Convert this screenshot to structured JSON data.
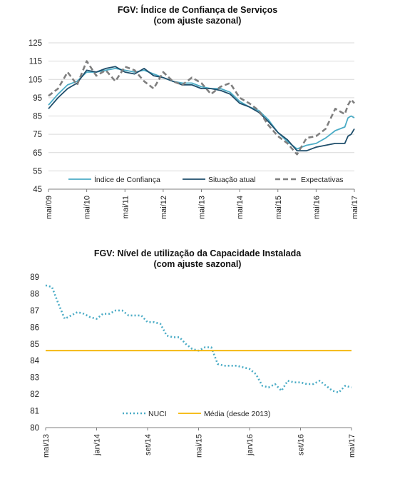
{
  "chart_data": [
    {
      "type": "line",
      "title": "FGV: Índice de Confiança de Serviços",
      "subtitle": "(com ajuste sazonal)",
      "ylim": [
        45,
        125
      ],
      "yticks": [
        45,
        55,
        65,
        75,
        85,
        95,
        105,
        115,
        125
      ],
      "x_tick_labels": [
        "mai/09",
        "mai/10",
        "mai/11",
        "mai/12",
        "mai/13",
        "mai/14",
        "mai/15",
        "mai/16",
        "mai/17"
      ],
      "x_range": [
        "2009-05",
        "2017-05"
      ],
      "grid": true,
      "legend_position": "bottom",
      "series": [
        {
          "name": "Índice de Confiança",
          "color": "#4bacc6",
          "style": "solid",
          "points": [
            [
              "2009-05",
              91
            ],
            [
              "2009-08",
              97
            ],
            [
              "2009-11",
              102
            ],
            [
              "2010-02",
              104
            ],
            [
              "2010-05",
              109
            ],
            [
              "2010-08",
              109
            ],
            [
              "2010-11",
              110
            ],
            [
              "2011-02",
              111
            ],
            [
              "2011-05",
              110
            ],
            [
              "2011-08",
              109
            ],
            [
              "2011-11",
              110
            ],
            [
              "2012-02",
              108
            ],
            [
              "2012-05",
              106
            ],
            [
              "2012-08",
              104
            ],
            [
              "2012-11",
              103
            ],
            [
              "2013-02",
              103
            ],
            [
              "2013-05",
              101
            ],
            [
              "2013-08",
              100
            ],
            [
              "2013-11",
              100
            ],
            [
              "2014-02",
              98
            ],
            [
              "2014-05",
              93
            ],
            [
              "2014-08",
              90
            ],
            [
              "2014-11",
              88
            ],
            [
              "2015-02",
              83
            ],
            [
              "2015-05",
              76
            ],
            [
              "2015-08",
              71
            ],
            [
              "2015-11",
              67
            ],
            [
              "2016-02",
              69
            ],
            [
              "2016-05",
              70
            ],
            [
              "2016-08",
              73
            ],
            [
              "2016-11",
              77
            ],
            [
              "2017-02",
              79
            ],
            [
              "2017-03",
              84
            ],
            [
              "2017-04",
              85
            ],
            [
              "2017-05",
              84
            ]
          ]
        },
        {
          "name": "Situação atual",
          "color": "#1f4e6b",
          "style": "solid",
          "points": [
            [
              "2009-05",
              89
            ],
            [
              "2009-08",
              95
            ],
            [
              "2009-11",
              100
            ],
            [
              "2010-02",
              103
            ],
            [
              "2010-05",
              110
            ],
            [
              "2010-08",
              109
            ],
            [
              "2010-11",
              111
            ],
            [
              "2011-02",
              112
            ],
            [
              "2011-05",
              109
            ],
            [
              "2011-08",
              108
            ],
            [
              "2011-11",
              111
            ],
            [
              "2012-02",
              107
            ],
            [
              "2012-05",
              106
            ],
            [
              "2012-08",
              104
            ],
            [
              "2012-11",
              102
            ],
            [
              "2013-02",
              102
            ],
            [
              "2013-05",
              100
            ],
            [
              "2013-08",
              100
            ],
            [
              "2013-11",
              99
            ],
            [
              "2014-02",
              97
            ],
            [
              "2014-05",
              92
            ],
            [
              "2014-08",
              90
            ],
            [
              "2014-11",
              87
            ],
            [
              "2015-02",
              82
            ],
            [
              "2015-05",
              76
            ],
            [
              "2015-08",
              72
            ],
            [
              "2015-11",
              66
            ],
            [
              "2016-02",
              66
            ],
            [
              "2016-05",
              68
            ],
            [
              "2016-08",
              69
            ],
            [
              "2016-11",
              70
            ],
            [
              "2017-02",
              70
            ],
            [
              "2017-03",
              74
            ],
            [
              "2017-04",
              75
            ],
            [
              "2017-05",
              78
            ]
          ]
        },
        {
          "name": "Expectativas",
          "color": "#7f7f7f",
          "style": "dashed",
          "points": [
            [
              "2009-05",
              96
            ],
            [
              "2009-08",
              100
            ],
            [
              "2009-11",
              109
            ],
            [
              "2010-02",
              102
            ],
            [
              "2010-05",
              115
            ],
            [
              "2010-08",
              107
            ],
            [
              "2010-11",
              110
            ],
            [
              "2011-02",
              104
            ],
            [
              "2011-05",
              112
            ],
            [
              "2011-08",
              110
            ],
            [
              "2011-11",
              104
            ],
            [
              "2012-02",
              100
            ],
            [
              "2012-05",
              109
            ],
            [
              "2012-08",
              104
            ],
            [
              "2012-11",
              102
            ],
            [
              "2013-02",
              106
            ],
            [
              "2013-05",
              103
            ],
            [
              "2013-08",
              97
            ],
            [
              "2013-11",
              101
            ],
            [
              "2014-02",
              103
            ],
            [
              "2014-05",
              95
            ],
            [
              "2014-08",
              92
            ],
            [
              "2014-11",
              88
            ],
            [
              "2015-02",
              80
            ],
            [
              "2015-05",
              74
            ],
            [
              "2015-08",
              70
            ],
            [
              "2015-11",
              64
            ],
            [
              "2016-02",
              73
            ],
            [
              "2016-05",
              74
            ],
            [
              "2016-08",
              78
            ],
            [
              "2016-11",
              89
            ],
            [
              "2017-02",
              86
            ],
            [
              "2017-03",
              91
            ],
            [
              "2017-04",
              94
            ],
            [
              "2017-05",
              92
            ]
          ]
        }
      ]
    },
    {
      "type": "line",
      "title": "FGV: Nível de utilização da Capacidade Instalada",
      "subtitle": "(com ajuste sazonal)",
      "ylim": [
        80,
        89
      ],
      "yticks": [
        80,
        81,
        82,
        83,
        84,
        85,
        86,
        87,
        88,
        89
      ],
      "x_tick_labels": [
        "mai/13",
        "jan/14",
        "set/14",
        "mai/15",
        "jan/16",
        "set/16",
        "mai/17"
      ],
      "x_range": [
        "2013-05",
        "2017-05"
      ],
      "grid": false,
      "legend_position": "bottom",
      "series": [
        {
          "name": "NUCI",
          "color": "#4bacc6",
          "style": "dotted",
          "points": [
            [
              "2013-05",
              88.5
            ],
            [
              "2013-06",
              88.4
            ],
            [
              "2013-07",
              87.4
            ],
            [
              "2013-08",
              86.5
            ],
            [
              "2013-09",
              86.7
            ],
            [
              "2013-10",
              86.9
            ],
            [
              "2013-11",
              86.8
            ],
            [
              "2013-12",
              86.6
            ],
            [
              "2014-01",
              86.5
            ],
            [
              "2014-02",
              86.8
            ],
            [
              "2014-03",
              86.8
            ],
            [
              "2014-04",
              87.0
            ],
            [
              "2014-05",
              87.0
            ],
            [
              "2014-06",
              86.7
            ],
            [
              "2014-07",
              86.7
            ],
            [
              "2014-08",
              86.7
            ],
            [
              "2014-09",
              86.3
            ],
            [
              "2014-10",
              86.3
            ],
            [
              "2014-11",
              86.2
            ],
            [
              "2014-12",
              85.5
            ],
            [
              "2015-01",
              85.4
            ],
            [
              "2015-02",
              85.4
            ],
            [
              "2015-03",
              85.0
            ],
            [
              "2015-04",
              84.7
            ],
            [
              "2015-05",
              84.6
            ],
            [
              "2015-06",
              84.8
            ],
            [
              "2015-07",
              84.8
            ],
            [
              "2015-08",
              83.8
            ],
            [
              "2015-09",
              83.7
            ],
            [
              "2015-10",
              83.7
            ],
            [
              "2015-11",
              83.7
            ],
            [
              "2015-12",
              83.6
            ],
            [
              "2016-01",
              83.5
            ],
            [
              "2016-02",
              83.2
            ],
            [
              "2016-03",
              82.5
            ],
            [
              "2016-04",
              82.4
            ],
            [
              "2016-05",
              82.6
            ],
            [
              "2016-06",
              82.2
            ],
            [
              "2016-07",
              82.8
            ],
            [
              "2016-08",
              82.7
            ],
            [
              "2016-09",
              82.7
            ],
            [
              "2016-10",
              82.6
            ],
            [
              "2016-11",
              82.6
            ],
            [
              "2016-12",
              82.8
            ],
            [
              "2017-01",
              82.5
            ],
            [
              "2017-02",
              82.2
            ],
            [
              "2017-03",
              82.1
            ],
            [
              "2017-04",
              82.5
            ],
            [
              "2017-05",
              82.4
            ]
          ]
        },
        {
          "name": "Média (desde 2013)",
          "color": "#f4b400",
          "style": "solid",
          "points": [
            [
              "2013-05",
              84.6
            ],
            [
              "2017-05",
              84.6
            ]
          ]
        }
      ]
    }
  ]
}
